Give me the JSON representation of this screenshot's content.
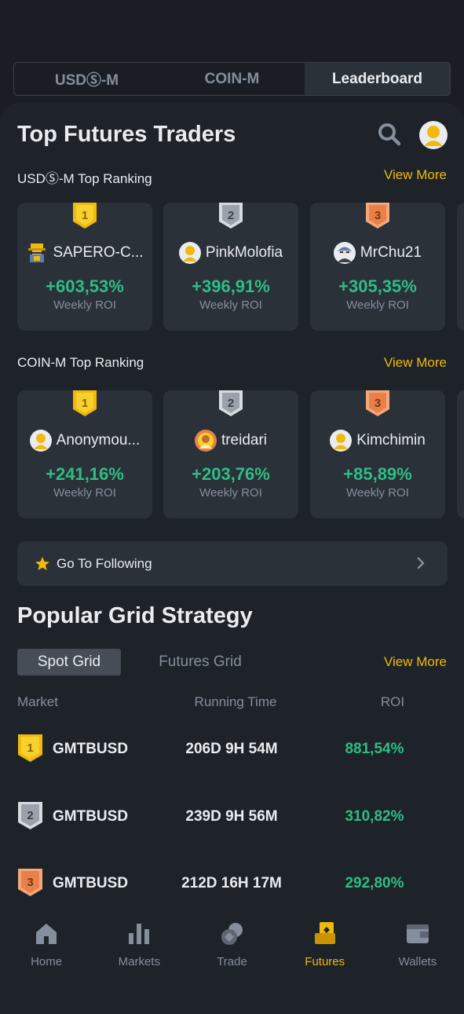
{
  "top_tabs": [
    "USDⓈ-M",
    "COIN-M",
    "Leaderboard"
  ],
  "header": {
    "title": "Top Futures Traders"
  },
  "usdm": {
    "heading": "USDⓈ-M Top Ranking",
    "view_more": "View More",
    "traders": [
      {
        "rank": "1",
        "name": "SAPERO-C...",
        "roi": "+603,53%",
        "roi_label": "Weekly ROI"
      },
      {
        "rank": "2",
        "name": "PinkMolofia",
        "roi": "+396,91%",
        "roi_label": "Weekly ROI"
      },
      {
        "rank": "3",
        "name": "MrChu21",
        "roi": "+305,35%",
        "roi_label": "Weekly ROI"
      }
    ]
  },
  "coinm": {
    "heading": "COIN-M Top Ranking",
    "view_more": "View More",
    "traders": [
      {
        "rank": "1",
        "name": "Anonymou...",
        "roi": "+241,16%",
        "roi_label": "Weekly ROI"
      },
      {
        "rank": "2",
        "name": "treidari",
        "roi": "+203,76%",
        "roi_label": "Weekly ROI"
      },
      {
        "rank": "3",
        "name": "Kimchimin",
        "roi": "+85,89%",
        "roi_label": "Weekly ROI"
      }
    ]
  },
  "following": {
    "label": "Go To Following"
  },
  "grid": {
    "title": "Popular Grid Strategy",
    "tabs": [
      "Spot Grid",
      "Futures Grid"
    ],
    "view_more": "View More",
    "columns": [
      "Market",
      "Running Time",
      "ROI"
    ],
    "rows": [
      {
        "rank": "1",
        "market": "GMTBUSD",
        "time": "206D 9H 54M",
        "roi": "881,54%"
      },
      {
        "rank": "2",
        "market": "GMTBUSD",
        "time": "239D 9H 56M",
        "roi": "310,82%"
      },
      {
        "rank": "3",
        "market": "GMTBUSD",
        "time": "212D 16H 17M",
        "roi": "292,80%"
      }
    ]
  },
  "nav": [
    "Home",
    "Markets",
    "Trade",
    "Futures",
    "Wallets"
  ],
  "colors": {
    "accent": "#f0b90b",
    "positive": "#2ebd85",
    "gold": "#f0b90b",
    "silver": "#b7bdc6",
    "bronze": "#e8804a"
  }
}
